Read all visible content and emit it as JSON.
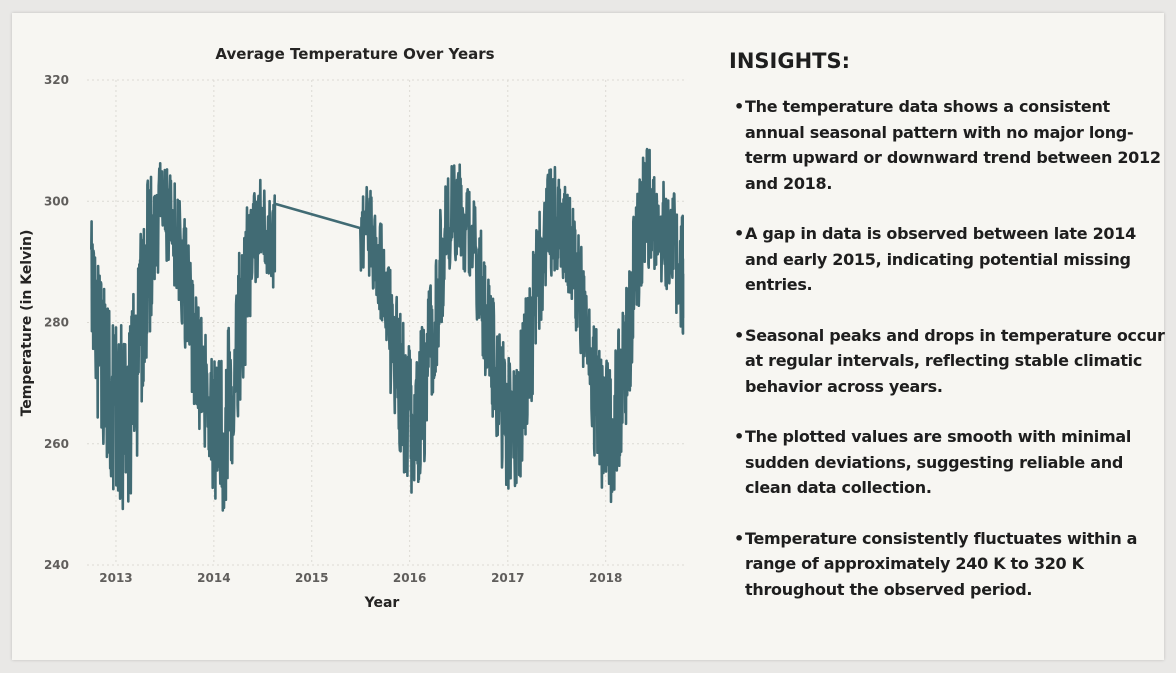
{
  "chart_data": {
    "type": "line",
    "title": "Average Temperature Over Years",
    "xlabel": "Year",
    "ylabel": "Temperature (in Kelvin)",
    "xlim": [
      "2012-09-15",
      "2018-10-20"
    ],
    "ylim": [
      240,
      320
    ],
    "yticks": [
      240,
      260,
      280,
      300,
      320
    ],
    "xticks": [
      "2013",
      "2014",
      "2015",
      "2016",
      "2017",
      "2018"
    ],
    "grid": true,
    "color": "#416b74",
    "series": [
      {
        "name": "",
        "x": [
          "2012-10-01",
          "2012-10-15",
          "2012-11-01",
          "2012-11-15",
          "2012-12-01",
          "2012-12-15",
          "2013-01-01",
          "2013-01-15",
          "2013-02-01",
          "2013-02-15",
          "2013-03-01",
          "2013-03-15",
          "2013-04-01",
          "2013-04-15",
          "2013-05-01",
          "2013-05-15",
          "2013-06-01",
          "2013-06-15",
          "2013-07-01",
          "2013-07-15",
          "2013-08-01",
          "2013-08-15",
          "2013-09-01",
          "2013-09-15",
          "2013-10-01",
          "2013-10-15",
          "2013-11-01",
          "2013-11-15",
          "2013-12-01",
          "2013-12-15",
          "2014-01-01",
          "2014-01-15",
          "2014-02-01",
          "2014-02-15",
          "2014-03-01",
          "2014-03-15",
          "2014-04-01",
          "2014-04-15",
          "2014-05-01",
          "2014-05-15",
          "2014-06-01",
          "2014-06-15",
          "2014-07-01",
          "2014-07-15",
          "2014-08-01",
          "2014-08-15",
          "2015-07-01",
          "2015-07-15",
          "2015-08-01",
          "2015-08-15",
          "2015-09-01",
          "2015-09-15",
          "2015-10-01",
          "2015-10-15",
          "2015-11-01",
          "2015-11-15",
          "2015-12-01",
          "2015-12-15",
          "2016-01-01",
          "2016-01-15",
          "2016-02-01",
          "2016-02-15",
          "2016-03-01",
          "2016-03-15",
          "2016-04-01",
          "2016-04-15",
          "2016-05-01",
          "2016-05-15",
          "2016-06-01",
          "2016-06-15",
          "2016-07-01",
          "2016-07-15",
          "2016-08-01",
          "2016-08-15",
          "2016-09-01",
          "2016-09-15",
          "2016-10-01",
          "2016-10-15",
          "2016-11-01",
          "2016-11-15",
          "2016-12-01",
          "2016-12-15",
          "2017-01-01",
          "2017-01-15",
          "2017-02-01",
          "2017-02-15",
          "2017-03-01",
          "2017-03-15",
          "2017-04-01",
          "2017-04-15",
          "2017-05-01",
          "2017-05-15",
          "2017-06-01",
          "2017-06-15",
          "2017-07-01",
          "2017-07-15",
          "2017-08-01",
          "2017-08-15",
          "2017-09-01",
          "2017-09-15",
          "2017-10-01",
          "2017-10-15",
          "2017-11-01",
          "2017-11-15",
          "2017-12-01",
          "2017-12-15",
          "2018-01-01",
          "2018-01-15",
          "2018-02-01",
          "2018-02-15",
          "2018-03-01",
          "2018-03-15",
          "2018-04-01",
          "2018-04-15",
          "2018-05-01",
          "2018-05-15",
          "2018-06-01",
          "2018-06-15",
          "2018-07-01",
          "2018-07-15",
          "2018-08-01",
          "2018-08-15",
          "2018-09-01",
          "2018-09-15",
          "2018-10-01",
          "2018-10-15"
        ],
        "y": [
          292,
          285,
          275,
          272,
          270,
          268,
          266,
          264,
          262,
          265,
          268,
          272,
          278,
          283,
          288,
          293,
          296,
          298,
          299,
          298,
          297,
          294,
          291,
          287,
          282,
          278,
          274,
          270,
          267,
          264,
          262,
          260,
          259,
          262,
          266,
          270,
          275,
          280,
          285,
          290,
          294,
          296,
          297,
          296,
          295,
          294,
          292,
          295,
          296,
          294,
          292,
          289,
          285,
          280,
          276,
          272,
          269,
          267,
          266,
          264,
          264,
          267,
          270,
          274,
          279,
          284,
          289,
          293,
          296,
          298,
          299,
          298,
          297,
          294,
          291,
          288,
          284,
          279,
          275,
          271,
          268,
          265,
          263,
          262,
          262,
          265,
          269,
          273,
          278,
          283,
          288,
          292,
          295,
          297,
          298,
          297,
          296,
          294,
          291,
          287,
          283,
          279,
          274,
          270,
          267,
          264,
          262,
          261,
          262,
          265,
          268,
          272,
          278,
          284,
          290,
          294,
          297,
          298,
          297,
          296,
          294,
          293,
          292,
          291,
          289,
          287
        ],
        "min": [
          270,
          268,
          260,
          258,
          255,
          252,
          250,
          248,
          248,
          250,
          252,
          256,
          262,
          268,
          275,
          282,
          286,
          288,
          290,
          289,
          287,
          284,
          281,
          276,
          271,
          266,
          262,
          258,
          255,
          252,
          250,
          248,
          248,
          250,
          254,
          258,
          262,
          268,
          274,
          280,
          285,
          288,
          289,
          288,
          287,
          285,
          284,
          286,
          287,
          285,
          283,
          280,
          276,
          270,
          265,
          260,
          257,
          254,
          252,
          250,
          251,
          254,
          258,
          262,
          268,
          273,
          279,
          284,
          287,
          289,
          290,
          289,
          288,
          285,
          282,
          278,
          273,
          268,
          264,
          260,
          257,
          254,
          251,
          250,
          250,
          253,
          257,
          262,
          267,
          273,
          278,
          283,
          286,
          288,
          289,
          288,
          287,
          285,
          282,
          278,
          273,
          268,
          263,
          259,
          256,
          253,
          251,
          250,
          251,
          254,
          257,
          262,
          268,
          274,
          280,
          285,
          288,
          289,
          288,
          287,
          285,
          284,
          283,
          282,
          280,
          278
        ],
        "max": [
          298,
          294,
          290,
          288,
          285,
          283,
          281,
          280,
          279,
          281,
          284,
          288,
          294,
          299,
          304,
          306,
          307,
          307,
          306,
          305,
          304,
          302,
          300,
          297,
          293,
          289,
          285,
          282,
          279,
          277,
          276,
          275,
          275,
          278,
          281,
          285,
          290,
          295,
          299,
          302,
          304,
          305,
          304,
          303,
          302,
          301,
          300,
          302,
          303,
          301,
          299,
          297,
          294,
          290,
          287,
          284,
          281,
          279,
          278,
          277,
          277,
          280,
          283,
          287,
          292,
          297,
          301,
          304,
          306,
          307,
          307,
          306,
          305,
          302,
          300,
          297,
          294,
          290,
          286,
          283,
          280,
          278,
          276,
          275,
          275,
          278,
          282,
          286,
          291,
          296,
          300,
          303,
          305,
          306,
          306,
          305,
          304,
          302,
          299,
          296,
          293,
          289,
          285,
          282,
          279,
          277,
          275,
          274,
          275,
          278,
          282,
          287,
          292,
          298,
          303,
          307,
          309,
          309,
          308,
          307,
          305,
          304,
          303,
          302,
          300,
          298
        ]
      }
    ]
  },
  "insights": {
    "title": "INSIGHTS:",
    "bullet": "•",
    "items": [
      "The temperature data shows a consistent annual seasonal pattern with no major long-term upward or downward trend between 2012 and 2018.",
      "A gap in data is observed between late 2014 and early 2015, indicating potential missing entries.",
      "Seasonal peaks and drops in temperature occur at regular intervals, reflecting stable climatic behavior across years.",
      "The plotted values are smooth with minimal sudden deviations, suggesting reliable and clean data collection.",
      "Temperature consistently fluctuates within a range of approximately 240 K to 320 K throughout the observed period."
    ]
  }
}
